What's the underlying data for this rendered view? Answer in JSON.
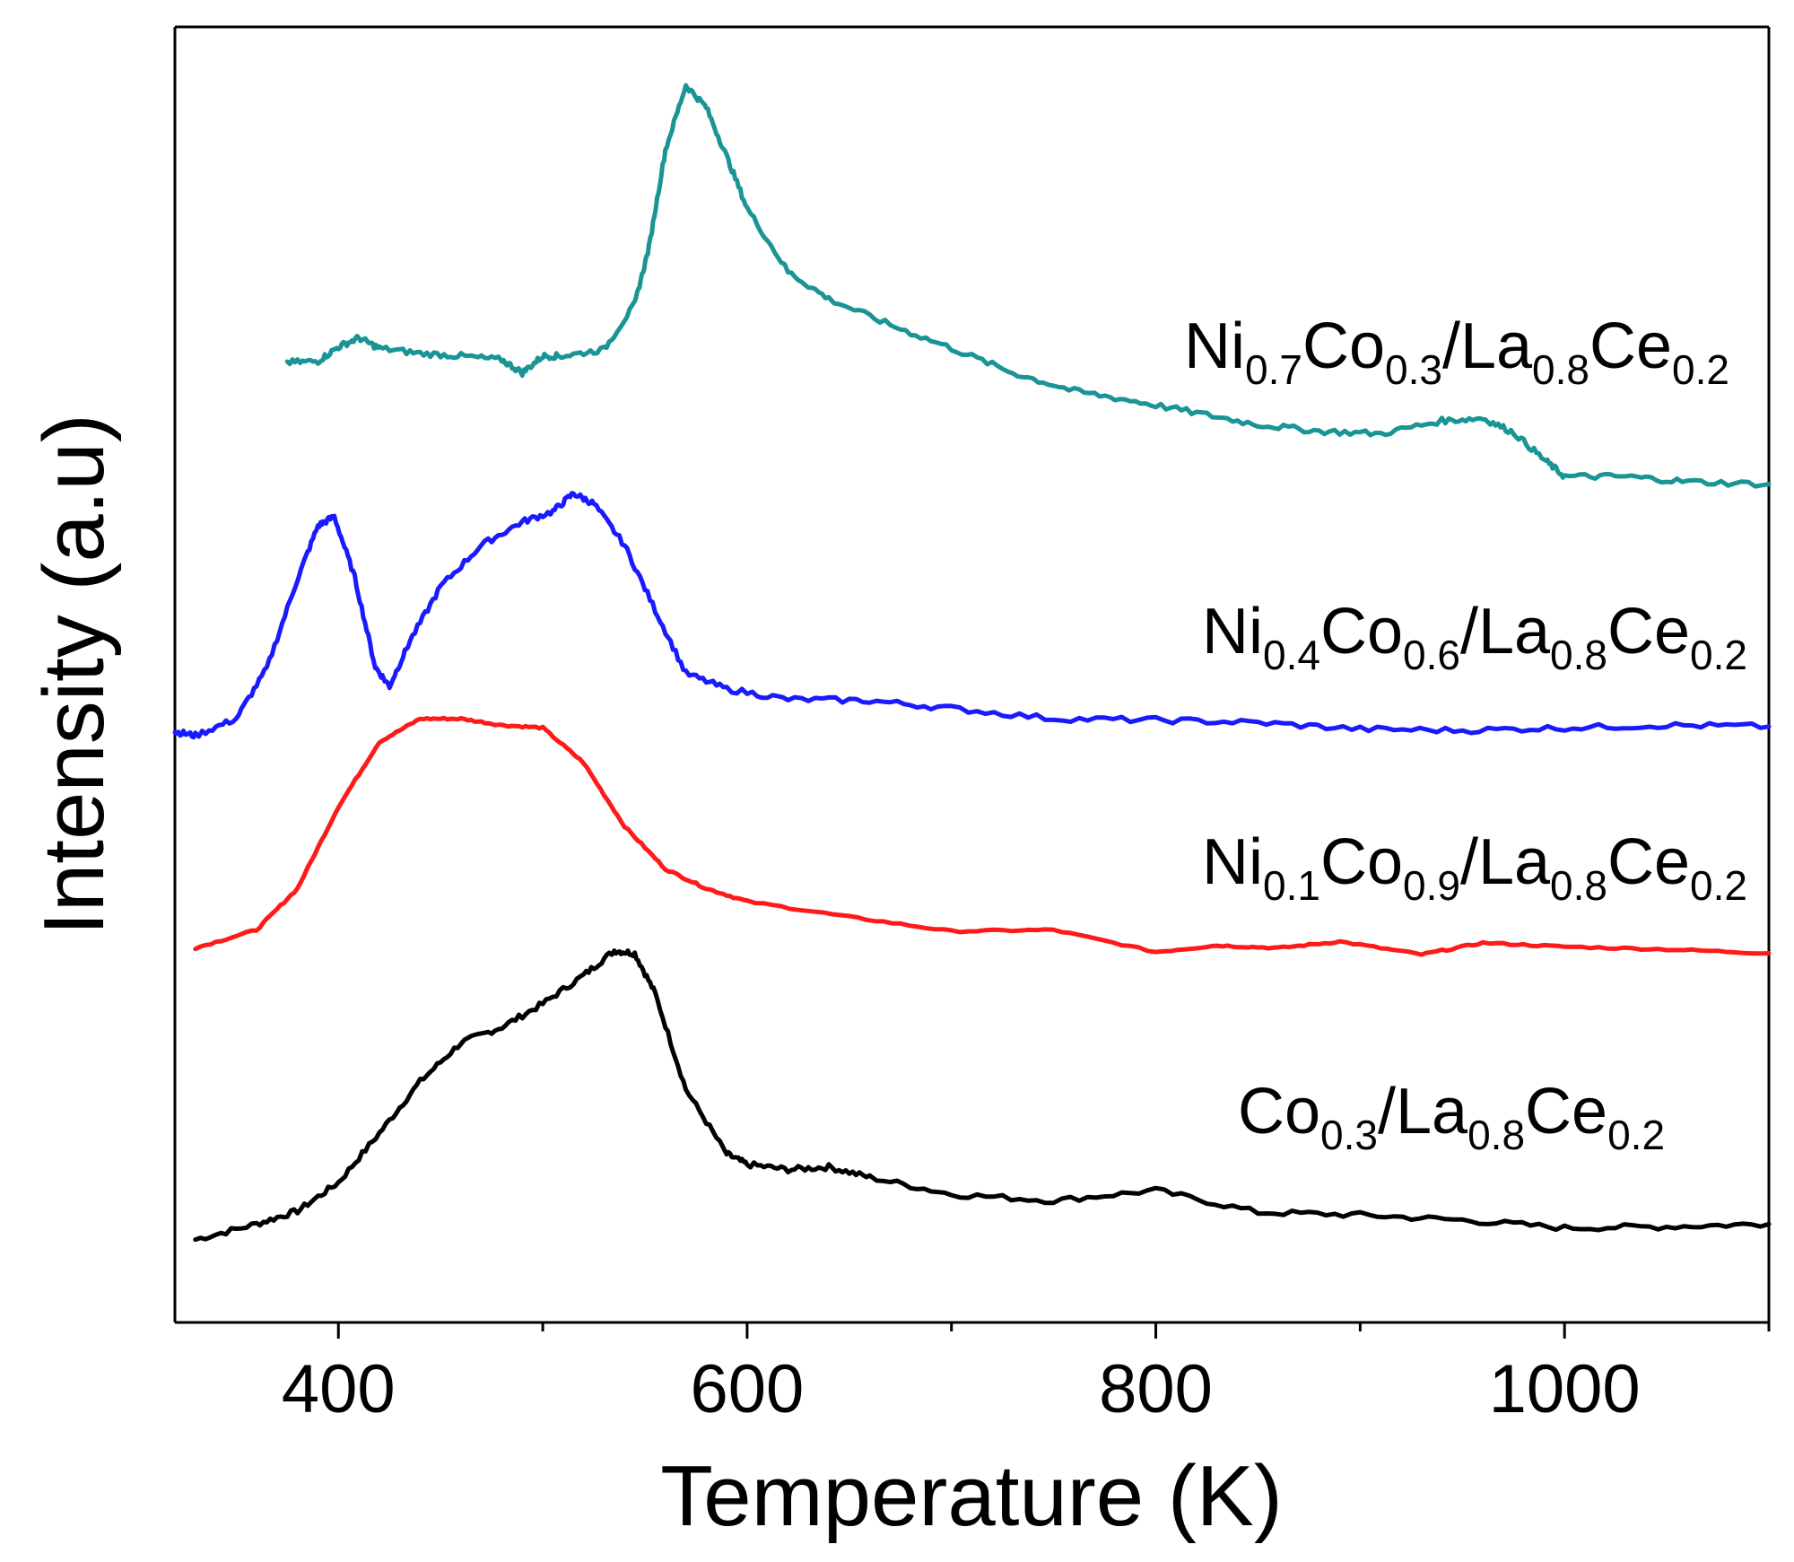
{
  "chart_data": {
    "type": "line",
    "title": "",
    "xlabel": "Temperature (K)",
    "ylabel": "Intensity (a.u)",
    "xlim": [
      320,
      1100
    ],
    "ylim": [
      0,
      100
    ],
    "x_ticks": [
      400,
      600,
      800,
      1000
    ],
    "x_minor_ticks": [
      500,
      700,
      900,
      1100
    ],
    "y_ticks_shown": false,
    "grid": false,
    "series": [
      {
        "name": "Co0.3/La0.8Ce0.2",
        "label_parts": [
          {
            "t": "Co",
            "sub": false
          },
          {
            "t": "0.3",
            "sub": true
          },
          {
            "t": "/La",
            "sub": false
          },
          {
            "t": "0.8",
            "sub": true
          },
          {
            "t": "Ce",
            "sub": false
          },
          {
            "t": "0.2",
            "sub": true
          }
        ],
        "color": "#000000",
        "x": [
          330,
          360,
          380,
          400,
          420,
          440,
          460,
          480,
          500,
          520,
          535,
          545,
          555,
          570,
          590,
          600,
          620,
          640,
          660,
          700,
          750,
          800,
          850,
          900,
          950,
          1000,
          1050,
          1100
        ],
        "y": [
          6.4,
          7.6,
          8.6,
          10.8,
          14.6,
          18.6,
          21.6,
          22.8,
          24.6,
          26.8,
          28.7,
          28.5,
          25.4,
          18.0,
          13.0,
          12.2,
          11.8,
          12.0,
          11.2,
          9.9,
          9.4,
          10.2,
          8.5,
          8.3,
          7.9,
          7.3,
          7.4,
          7.6
        ]
      },
      {
        "name": "Ni0.1Co0.9/La0.8Ce0.2",
        "label_parts": [
          {
            "t": "Ni",
            "sub": false
          },
          {
            "t": "0.1",
            "sub": true
          },
          {
            "t": "Co",
            "sub": false
          },
          {
            "t": "0.9",
            "sub": true
          },
          {
            "t": "/La",
            "sub": false
          },
          {
            "t": "0.8",
            "sub": true
          },
          {
            "t": "Ce",
            "sub": false
          },
          {
            "t": "0.2",
            "sub": true
          }
        ],
        "color": "#ff1a1a",
        "x": [
          330,
          360,
          380,
          400,
          420,
          440,
          460,
          480,
          500,
          520,
          540,
          560,
          580,
          600,
          650,
          700,
          750,
          800,
          830,
          860,
          890,
          930,
          960,
          1000,
          1050,
          1100
        ],
        "y": [
          28.9,
          30.3,
          33.5,
          39.8,
          44.8,
          46.6,
          46.6,
          46.1,
          45.9,
          43.2,
          38.3,
          35.0,
          33.5,
          32.5,
          31.3,
          30.2,
          30.3,
          28.6,
          29.1,
          28.9,
          29.4,
          28.4,
          29.3,
          29.0,
          28.8,
          28.5
        ]
      },
      {
        "name": "Ni0.4Co0.6/La0.8Ce0.2",
        "label_parts": [
          {
            "t": "Ni",
            "sub": false
          },
          {
            "t": "0.4",
            "sub": true
          },
          {
            "t": "Co",
            "sub": false
          },
          {
            "t": "0.6",
            "sub": true
          },
          {
            "t": "/La",
            "sub": false
          },
          {
            "t": "0.8",
            "sub": true
          },
          {
            "t": "Ce",
            "sub": false
          },
          {
            "t": "0.2",
            "sub": true
          }
        ],
        "color": "#1a1aff",
        "x": [
          320,
          330,
          350,
          365,
          380,
          390,
          398,
          408,
          418,
          425,
          435,
          450,
          470,
          490,
          505,
          515,
          525,
          540,
          555,
          570,
          590,
          620,
          660,
          700,
          750,
          800,
          850,
          900,
          950,
          1000,
          1050,
          1100
        ],
        "y": [
          45.6,
          45.3,
          46.6,
          50.5,
          57.4,
          61.5,
          62.2,
          57.5,
          50.6,
          49.1,
          52.6,
          56.8,
          60.0,
          61.8,
          62.6,
          64.0,
          63.2,
          60.0,
          55.0,
          50.1,
          48.9,
          48.1,
          48.0,
          47.4,
          46.6,
          46.5,
          46.3,
          45.8,
          45.7,
          45.9,
          46.1,
          46.0
        ]
      },
      {
        "name": "Ni0.7Co0.3/La0.8Ce0.2",
        "label_parts": [
          {
            "t": "Ni",
            "sub": false
          },
          {
            "t": "0.7",
            "sub": true
          },
          {
            "t": "Co",
            "sub": false
          },
          {
            "t": "0.3",
            "sub": true
          },
          {
            "t": "/La",
            "sub": false
          },
          {
            "t": "0.8",
            "sub": true
          },
          {
            "t": "Ce",
            "sub": false
          },
          {
            "t": "0.2",
            "sub": true
          }
        ],
        "color": "#1a9494",
        "x": [
          375,
          390,
          400,
          410,
          420,
          440,
          460,
          480,
          490,
          500,
          510,
          530,
          545,
          552,
          560,
          570,
          580,
          590,
          600,
          620,
          640,
          670,
          700,
          730,
          760,
          790,
          820,
          850,
          880,
          910,
          940,
          960,
          975,
          990,
          1000,
          1030,
          1060,
          1100
        ],
        "y": [
          74.1,
          74.2,
          75.3,
          76.0,
          75.2,
          74.8,
          74.6,
          74.3,
          73.3,
          74.6,
          74.6,
          75.1,
          78.6,
          83.0,
          90.5,
          95.5,
          93.8,
          90.0,
          86.0,
          81.1,
          79.0,
          77.0,
          75.2,
          73.3,
          71.9,
          71.1,
          70.2,
          69.3,
          68.8,
          68.6,
          69.6,
          69.8,
          68.7,
          66.6,
          65.3,
          65.3,
          64.9,
          64.7
        ]
      }
    ]
  }
}
